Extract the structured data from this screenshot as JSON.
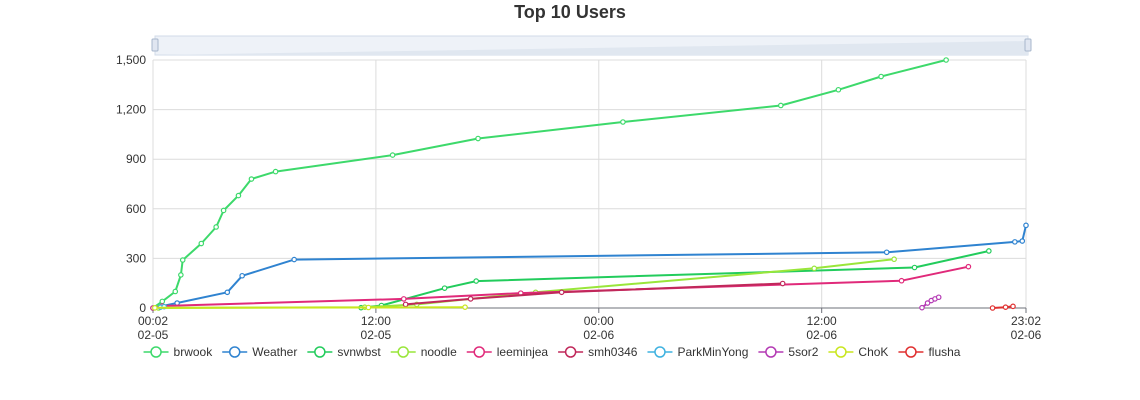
{
  "chart_data": {
    "type": "line",
    "title": "Top 10 Users",
    "xlabel": "",
    "ylabel": "",
    "x_unit": "hours from 2025-02-05 00:02",
    "xlim": [
      0,
      47
    ],
    "ylim": [
      0,
      1500
    ],
    "y_ticks": [
      "0",
      "300",
      "600",
      "900",
      "1,200",
      "1,500"
    ],
    "x_ticks": [
      {
        "at": 0,
        "time": "00:02",
        "date": "02-05"
      },
      {
        "at": 12,
        "time": "12:00",
        "date": "02-05"
      },
      {
        "at": 24,
        "time": "00:00",
        "date": "02-06"
      },
      {
        "at": 36,
        "time": "12:00",
        "date": "02-06"
      },
      {
        "at": 47,
        "time": "23:02",
        "date": "02-06"
      }
    ],
    "grid": true,
    "legend_position": "bottom",
    "series": [
      {
        "name": "brwook",
        "color": "#3dd96b",
        "points": [
          [
            0,
            0
          ],
          [
            0.5,
            40
          ],
          [
            1.2,
            100
          ],
          [
            1.5,
            200
          ],
          [
            1.6,
            290
          ],
          [
            2.6,
            390
          ],
          [
            3.4,
            490
          ],
          [
            3.8,
            590
          ],
          [
            4.6,
            680
          ],
          [
            5.3,
            780
          ],
          [
            6.6,
            825
          ],
          [
            12.9,
            925
          ],
          [
            17.5,
            1025
          ],
          [
            25.3,
            1125
          ],
          [
            33.8,
            1225
          ],
          [
            36.9,
            1320
          ],
          [
            39.2,
            1400
          ],
          [
            42.7,
            1500
          ]
        ]
      },
      {
        "name": "Weather",
        "color": "#2f83d0",
        "points": [
          [
            0,
            0
          ],
          [
            1.3,
            30
          ],
          [
            4.0,
            95
          ],
          [
            4.8,
            195
          ],
          [
            7.6,
            293
          ],
          [
            39.5,
            337
          ],
          [
            46.4,
            400
          ],
          [
            46.8,
            405
          ],
          [
            47,
            500
          ]
        ]
      },
      {
        "name": "svnwbst",
        "color": "#22cc5c",
        "points": [
          [
            11.2,
            2
          ],
          [
            12.3,
            15
          ],
          [
            15.7,
            120
          ],
          [
            17.4,
            163
          ],
          [
            41.0,
            245
          ],
          [
            45.0,
            345
          ]
        ]
      },
      {
        "name": "noodle",
        "color": "#99e63a",
        "points": [
          [
            0.3,
            0
          ],
          [
            11.4,
            5
          ],
          [
            14.2,
            22
          ],
          [
            20.6,
            95
          ],
          [
            35.6,
            240
          ],
          [
            39.9,
            295
          ]
        ]
      },
      {
        "name": "leeminjea",
        "color": "#e02a7a",
        "points": [
          [
            0,
            0
          ],
          [
            0.5,
            12
          ],
          [
            13.5,
            55
          ],
          [
            19.8,
            90
          ],
          [
            40.3,
            165
          ],
          [
            43.9,
            250
          ]
        ]
      },
      {
        "name": "smh0346",
        "color": "#c0285a",
        "points": [
          [
            13.6,
            22
          ],
          [
            17.1,
            55
          ],
          [
            22.0,
            95
          ],
          [
            33.9,
            148
          ]
        ]
      },
      {
        "name": "ParkMinYong",
        "color": "#3fb2e0",
        "points": [
          [
            0.4,
            5
          ],
          [
            0.6,
            8
          ]
        ]
      },
      {
        "name": "5sor2",
        "color": "#b43ab4",
        "points": [
          [
            41.4,
            2
          ],
          [
            41.7,
            30
          ],
          [
            41.9,
            45
          ],
          [
            42.1,
            55
          ],
          [
            42.3,
            65
          ]
        ]
      },
      {
        "name": "ChoK",
        "color": "#c9e61e",
        "points": [
          [
            0.1,
            1
          ],
          [
            11.6,
            3
          ],
          [
            16.8,
            5
          ]
        ]
      },
      {
        "name": "flusha",
        "color": "#e03030",
        "points": [
          [
            45.2,
            0
          ],
          [
            45.9,
            5
          ],
          [
            46.3,
            10
          ]
        ]
      }
    ]
  }
}
